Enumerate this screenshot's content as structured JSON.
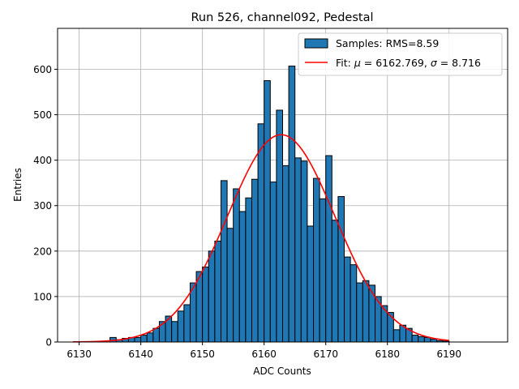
{
  "chart_data": {
    "type": "bar",
    "title": "Run 526, channel092, Pedestal",
    "xlabel": "ADC Counts",
    "ylabel": "Entries",
    "xlim": [
      6126.5,
      6199.5
    ],
    "ylim": [
      0,
      690
    ],
    "xticks": [
      6130,
      6140,
      6150,
      6160,
      6170,
      6180,
      6190
    ],
    "yticks": [
      0,
      100,
      200,
      300,
      400,
      500,
      600
    ],
    "grid": true,
    "legend_position": "top-right",
    "bar_color": "#1f77b4",
    "fit_color": "#ff0000",
    "series": [
      {
        "name": "Samples: RMS=8.59",
        "type": "histogram",
        "bin_width": 1,
        "bins_start": [
          6135,
          6136,
          6137,
          6138,
          6139,
          6140,
          6141,
          6142,
          6143,
          6144,
          6145,
          6146,
          6147,
          6148,
          6149,
          6150,
          6151,
          6152,
          6153,
          6154,
          6155,
          6156,
          6157,
          6158,
          6159,
          6160,
          6161,
          6162,
          6163,
          6164,
          6165,
          6166,
          6167,
          6168,
          6169,
          6170,
          6171,
          6172,
          6173,
          6174,
          6175,
          6176,
          6177,
          6178,
          6179,
          6180,
          6181,
          6182,
          6183,
          6184,
          6185,
          6186,
          6187,
          6188,
          6189
        ],
        "values": [
          10,
          5,
          8,
          10,
          10,
          15,
          20,
          30,
          45,
          57,
          45,
          68,
          82,
          130,
          155,
          165,
          200,
          222,
          355,
          250,
          337,
          287,
          317,
          358,
          480,
          575,
          352,
          510,
          388,
          607,
          405,
          398,
          255,
          360,
          315,
          410,
          268,
          320,
          187,
          170,
          130,
          135,
          125,
          100,
          80,
          65,
          27,
          37,
          30,
          15,
          12,
          10,
          6,
          3,
          2
        ]
      },
      {
        "name": "Fit: μ = 6162.769, σ = 8.716",
        "type": "gaussian",
        "mu": 6162.769,
        "sigma": 8.716,
        "amplitude": 456,
        "x_range": [
          6129,
          6190
        ]
      }
    ],
    "legend": {
      "samples_label": "Samples: RMS=8.59",
      "fit_prefix": "Fit: ",
      "mu_symbol": "μ",
      "mu_text": " = 6162.769, ",
      "sigma_symbol": "σ",
      "sigma_text": " = 8.716"
    }
  }
}
